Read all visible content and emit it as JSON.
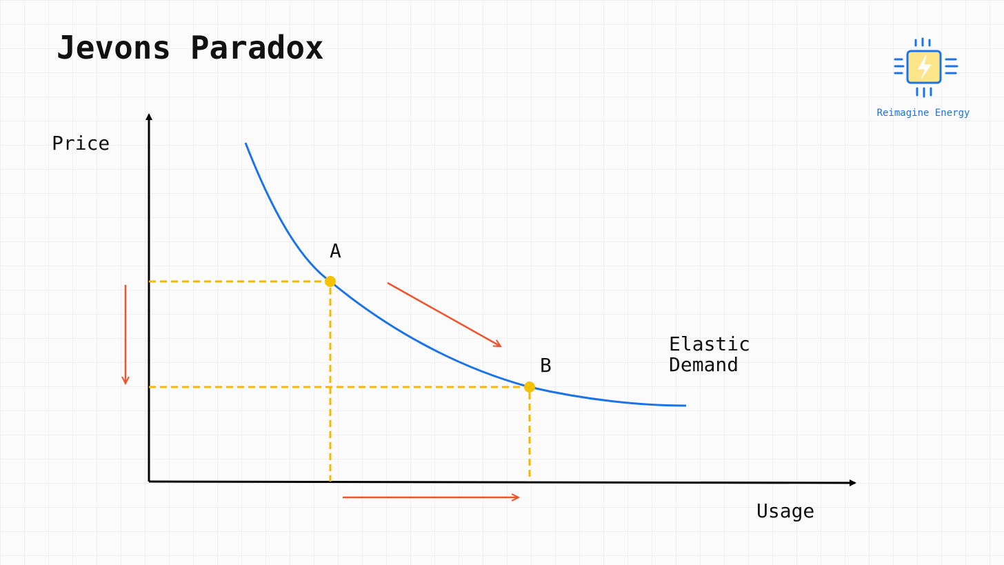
{
  "title": "Jevons Paradox",
  "logo": {
    "text": "Reimagine Energy"
  },
  "axes": {
    "y_label": "Price",
    "x_label": "Usage"
  },
  "points": [
    {
      "label": "A"
    },
    {
      "label": "B"
    }
  ],
  "curve": {
    "label_lines": [
      "Elastic",
      "Demand"
    ]
  }
}
